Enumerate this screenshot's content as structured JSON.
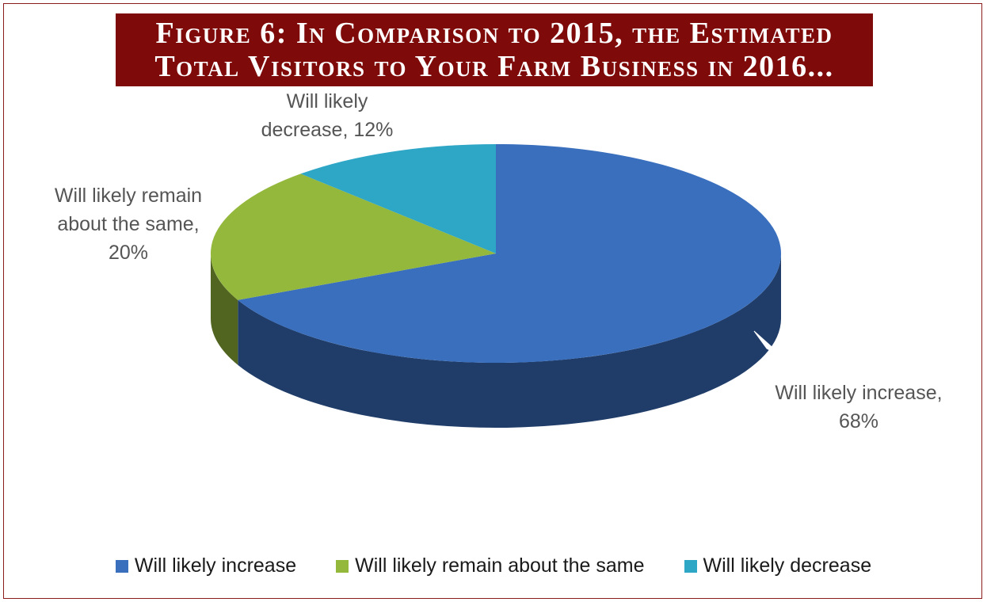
{
  "title_lines": [
    "Figure 6: In Comparison to 2015, the Estimated",
    "Total Visitors to Your Farm Business in 2016..."
  ],
  "chart_data": {
    "type": "pie",
    "style": "3d",
    "title": "Figure 6: In Comparison to 2015, the Estimated Total Visitors to Your Farm Business in 2016...",
    "categories": [
      "Will likely increase",
      "Will likely remain about the same",
      "Will likely decrease"
    ],
    "values": [
      68,
      20,
      12
    ],
    "unit": "%",
    "colors": [
      "#3a6fbe",
      "#93b83c",
      "#2ea6c6"
    ],
    "legend_position": "bottom",
    "data_labels": [
      [
        "Will likely increase,",
        "68%"
      ],
      [
        "Will likely remain",
        "about the same,",
        "20%"
      ],
      [
        "Will likely",
        "decrease, 12%"
      ]
    ]
  }
}
